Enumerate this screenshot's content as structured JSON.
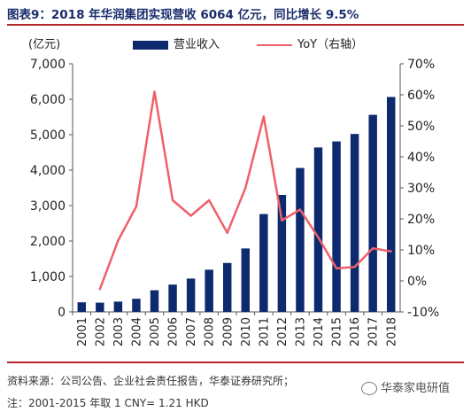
{
  "title": "图表9：2018 年华润集团实现营收 6064 亿元，同比增长 9.5%",
  "unit_label": "(亿元)",
  "legend": {
    "bar": "营业收入",
    "line": "YoY（右轴）"
  },
  "source_note": "资料来源：公司公告、企业社会责任报告，华泰证券研究所；",
  "footnote": "注：2001-2015 年取 1 CNY= 1.21 HKD",
  "watermark": "华泰家电研值",
  "colors": {
    "bar": "#0d2a6e",
    "line": "#f0606a",
    "rule": "#b5272d"
  },
  "chart_data": {
    "type": "bar",
    "categories": [
      "2001",
      "2002",
      "2003",
      "2004",
      "2005",
      "2006",
      "2007",
      "2008",
      "2009",
      "2010",
      "2011",
      "2012",
      "2013",
      "2014",
      "2015",
      "2016",
      "2017",
      "2018"
    ],
    "series": [
      {
        "name": "营业收入",
        "type": "bar",
        "axis": "left",
        "values": [
          270,
          260,
          290,
          370,
          610,
          770,
          940,
          1190,
          1380,
          1790,
          2760,
          3300,
          4060,
          4640,
          4810,
          5020,
          5560,
          6064
        ]
      },
      {
        "name": "YoY（右轴）",
        "type": "line",
        "axis": "right",
        "values": [
          null,
          -2.7,
          13,
          24,
          61,
          26,
          21,
          26,
          15.5,
          30,
          53,
          19.5,
          23,
          14,
          4,
          4.5,
          10.5,
          9.5
        ]
      }
    ],
    "y_left": {
      "min": 0,
      "max": 7000,
      "ticks": [
        "0",
        "1,000",
        "2,000",
        "3,000",
        "4,000",
        "5,000",
        "6,000",
        "7,000"
      ]
    },
    "y_right": {
      "min": -10,
      "max": 70,
      "ticks": [
        "-10%",
        "0%",
        "10%",
        "20%",
        "30%",
        "40%",
        "50%",
        "60%",
        "70%"
      ]
    },
    "grid": false,
    "legend_position": "top"
  }
}
